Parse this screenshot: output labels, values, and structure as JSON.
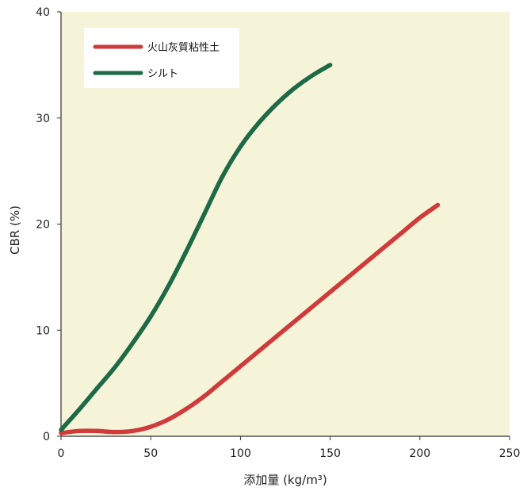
{
  "chart_data": {
    "type": "line",
    "xlabel": "添加量 (kg/m³)",
    "ylabel": "CBR (%)",
    "xlim": [
      0,
      250
    ],
    "ylim": [
      0,
      40
    ],
    "x_ticks": [
      "0",
      "50",
      "100",
      "150",
      "200",
      "250"
    ],
    "y_ticks": [
      "0",
      "10",
      "20",
      "30",
      "40"
    ],
    "grid": false,
    "legend_position": "top-left",
    "plot_background": "#f5f3d8",
    "series": [
      {
        "name": "火山灰質粘性土",
        "color": "#d03a3a",
        "x": [
          0,
          10,
          20,
          30,
          40,
          50,
          60,
          70,
          80,
          90,
          100,
          110,
          120,
          130,
          140,
          150,
          160,
          170,
          180,
          190,
          200,
          210
        ],
        "y": [
          0.3,
          0.5,
          0.5,
          0.4,
          0.5,
          0.9,
          1.6,
          2.6,
          3.8,
          5.2,
          6.6,
          8.0,
          9.4,
          10.8,
          12.2,
          13.6,
          15.0,
          16.4,
          17.8,
          19.2,
          20.6,
          21.8
        ]
      },
      {
        "name": "シルト",
        "color": "#1e6a46",
        "x": [
          0,
          10,
          20,
          30,
          40,
          50,
          60,
          70,
          80,
          90,
          100,
          110,
          120,
          130,
          140,
          150
        ],
        "y": [
          0.6,
          2.5,
          4.5,
          6.5,
          8.8,
          11.3,
          14.2,
          17.5,
          21.0,
          24.5,
          27.3,
          29.5,
          31.3,
          32.8,
          34.0,
          35.0
        ]
      }
    ]
  }
}
